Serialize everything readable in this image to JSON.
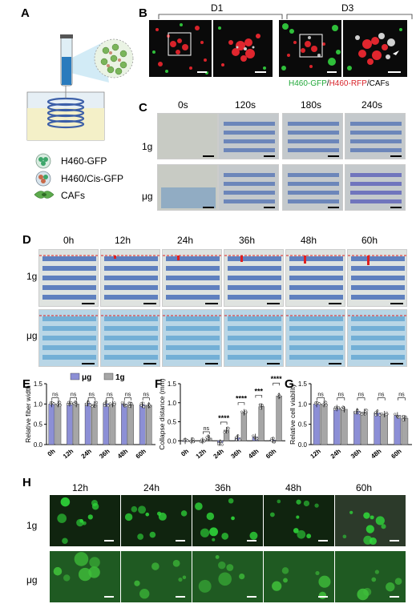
{
  "panels": {
    "A": "A",
    "B": "B",
    "C": "C",
    "D": "D",
    "E": "E",
    "F": "F",
    "G": "G",
    "H": "H"
  },
  "panelA": {
    "legend": [
      {
        "label": "H460-GFP",
        "color": "#2e9d5a"
      },
      {
        "label": "H460/Cis-GFP",
        "color": "#c86a4a"
      },
      {
        "label": "CAFs",
        "color": "#4fa34a"
      }
    ]
  },
  "panelB": {
    "d1": "D1",
    "d3": "D3",
    "legend_gfp": "H460-GFP",
    "legend_sep1": "/",
    "legend_rfp": "H460-RFP",
    "legend_sep2": "/CAFs"
  },
  "panelC": {
    "times": [
      "0s",
      "120s",
      "180s",
      "240s"
    ],
    "rows": [
      "1g",
      "μg"
    ]
  },
  "panelD": {
    "times": [
      "0h",
      "12h",
      "24h",
      "36h",
      "48h",
      "60h"
    ],
    "rows": [
      "1g",
      "μg"
    ]
  },
  "panelH": {
    "times": [
      "12h",
      "24h",
      "36h",
      "48h",
      "60h"
    ],
    "rows": [
      "1g",
      "μg"
    ]
  },
  "colors": {
    "ug": "#8c8fd6",
    "g1": "#a6a6a6",
    "sig": "#000000"
  },
  "chart_data": [
    {
      "id": "E",
      "type": "bar",
      "ylabel": "Relative fiber width",
      "ylim": [
        0,
        1.5
      ],
      "yticks": [
        "0.0",
        "0.5",
        "1.0",
        "1.5"
      ],
      "categories": [
        "0h",
        "12h",
        "24h",
        "36h",
        "48h",
        "60h"
      ],
      "legend": [
        "μg",
        "1g"
      ],
      "series": [
        {
          "name": "μg",
          "values": [
            1.0,
            1.02,
            1.02,
            1.01,
            1.0,
            0.98
          ]
        },
        {
          "name": "1g",
          "values": [
            1.0,
            1.0,
            0.99,
            1.0,
            0.98,
            0.97
          ]
        }
      ],
      "annotations": [
        "ns",
        "ns",
        "ns",
        "ns",
        "ns",
        "ns"
      ]
    },
    {
      "id": "F",
      "type": "bar",
      "ylabel": "Collapse distance (mm)",
      "ylim": [
        -0.1,
        1.5
      ],
      "yticks": [
        "0.0",
        "0.5",
        "1.0",
        "1.5"
      ],
      "categories": [
        "0h",
        "12h",
        "24h",
        "36h",
        "48h",
        "60h"
      ],
      "series": [
        {
          "name": "μg",
          "values": [
            0.0,
            0.0,
            -0.05,
            0.08,
            0.1,
            0.02
          ]
        },
        {
          "name": "1g",
          "values": [
            0.0,
            0.07,
            0.28,
            0.75,
            0.9,
            1.18
          ]
        }
      ],
      "annotations": [
        "ns",
        "****",
        "****",
        "***",
        "****"
      ]
    },
    {
      "id": "G",
      "type": "bar",
      "ylabel": "Relative cell viability",
      "ylim": [
        0,
        1.5
      ],
      "yticks": [
        "0.0",
        "0.5",
        "1.0",
        "1.5"
      ],
      "categories": [
        "12h",
        "24h",
        "36h",
        "48h",
        "60h"
      ],
      "series": [
        {
          "name": "μg",
          "values": [
            1.0,
            0.9,
            0.82,
            0.78,
            0.72
          ]
        },
        {
          "name": "1g",
          "values": [
            1.0,
            0.87,
            0.8,
            0.75,
            0.65
          ]
        }
      ],
      "annotations": [
        "ns",
        "ns",
        "ns",
        "ns",
        "ns"
      ]
    }
  ]
}
